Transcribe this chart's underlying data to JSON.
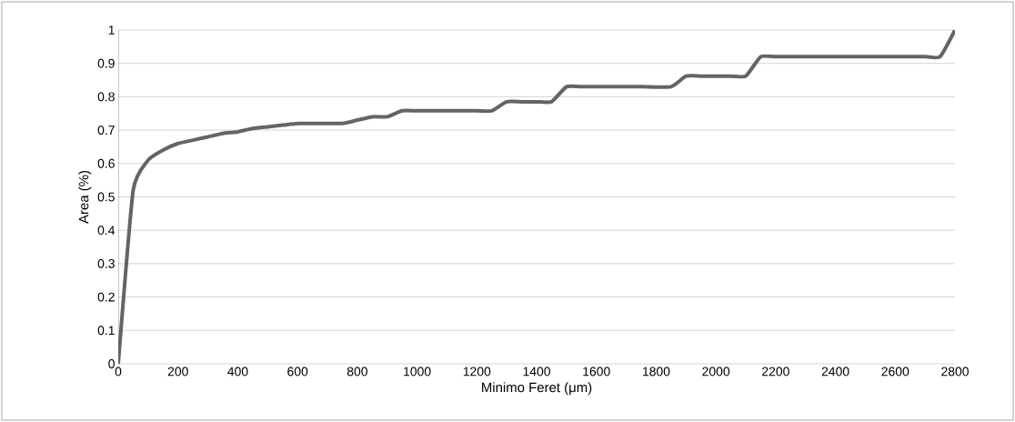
{
  "chart_data": {
    "type": "line",
    "xlabel": "Minimo Feret (μm)",
    "ylabel": "Area (%)",
    "xlim": [
      0,
      2800
    ],
    "xticks": [
      0,
      200,
      400,
      600,
      800,
      1000,
      1200,
      1400,
      1600,
      1800,
      2000,
      2200,
      2400,
      2600,
      2800
    ],
    "ylim": [
      0,
      1
    ],
    "yticks": [
      0,
      0.1,
      0.2,
      0.3,
      0.4,
      0.5,
      0.6,
      0.7,
      0.8,
      0.9,
      1
    ],
    "grid": "y",
    "marker": "none",
    "line_style": "solid",
    "series": [
      {
        "color": "#646464",
        "x": [
          0,
          50,
          100,
          150,
          200,
          250,
          300,
          350,
          400,
          450,
          500,
          550,
          600,
          650,
          700,
          750,
          800,
          850,
          900,
          950,
          1000,
          1100,
          1200,
          1250,
          1300,
          1350,
          1400,
          1450,
          1500,
          1550,
          1650,
          1750,
          1850,
          1900,
          1950,
          2000,
          2050,
          2100,
          2150,
          2200,
          2300,
          2400,
          2500,
          2600,
          2700,
          2750,
          2800
        ],
        "values": [
          0,
          0.52,
          0.61,
          0.64,
          0.66,
          0.67,
          0.68,
          0.69,
          0.695,
          0.705,
          0.71,
          0.715,
          0.72,
          0.72,
          0.72,
          0.72,
          0.73,
          0.74,
          0.74,
          0.758,
          0.758,
          0.758,
          0.758,
          0.758,
          0.785,
          0.785,
          0.785,
          0.785,
          0.83,
          0.83,
          0.83,
          0.83,
          0.83,
          0.862,
          0.862,
          0.862,
          0.862,
          0.862,
          0.92,
          0.92,
          0.92,
          0.92,
          0.92,
          0.92,
          0.92,
          0.92,
          1
        ]
      }
    ]
  }
}
